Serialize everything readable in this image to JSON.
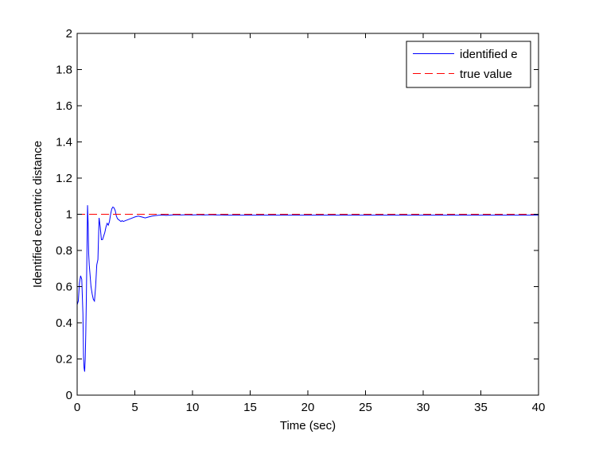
{
  "chart_data": {
    "type": "line",
    "title": "",
    "xlabel": "Time (sec)",
    "ylabel": "Identified eccentric distance",
    "xlim": [
      0,
      40
    ],
    "ylim": [
      0,
      2
    ],
    "xticks": [
      0,
      5,
      10,
      15,
      20,
      25,
      30,
      35,
      40
    ],
    "yticks": [
      0,
      0.2,
      0.4,
      0.6,
      0.8,
      1,
      1.2,
      1.4,
      1.6,
      1.8,
      2
    ],
    "xtick_labels": [
      "0",
      "5",
      "10",
      "15",
      "20",
      "25",
      "30",
      "35",
      "40"
    ],
    "ytick_labels": [
      "0",
      "0.2",
      "0.4",
      "0.6",
      "0.8",
      "1",
      "1.2",
      "1.4",
      "1.6",
      "1.8",
      "2"
    ],
    "grid": false,
    "legend_position": "top-right",
    "series": [
      {
        "name": "identified e",
        "color": "#0000ff",
        "style": "solid",
        "x": [
          0,
          0.1,
          0.2,
          0.3,
          0.4,
          0.5,
          0.55,
          0.6,
          0.65,
          0.7,
          0.75,
          0.8,
          0.85,
          0.9,
          0.95,
          1.0,
          1.05,
          1.1,
          1.2,
          1.3,
          1.4,
          1.5,
          1.6,
          1.7,
          1.8,
          1.9,
          2.0,
          2.1,
          2.2,
          2.3,
          2.4,
          2.5,
          2.6,
          2.7,
          2.8,
          2.9,
          3.0,
          3.1,
          3.2,
          3.3,
          3.4,
          3.5,
          3.6,
          3.7,
          3.8,
          3.9,
          4.0,
          4.2,
          4.4,
          4.6,
          4.8,
          5.0,
          5.3,
          5.6,
          5.9,
          6.2,
          6.5,
          6.8,
          7.1,
          7.4,
          7.7,
          8.0,
          8.5,
          9.0,
          9.5,
          10.0,
          10.5,
          11.0,
          11.5,
          12.0,
          12.5,
          13.0,
          13.5,
          14.0,
          16,
          20,
          25,
          30,
          35,
          40
        ],
        "y": [
          0.5,
          0.52,
          0.62,
          0.66,
          0.64,
          0.45,
          0.22,
          0.15,
          0.13,
          0.2,
          0.35,
          0.55,
          0.8,
          1.05,
          0.95,
          0.78,
          0.72,
          0.68,
          0.6,
          0.56,
          0.53,
          0.52,
          0.6,
          0.72,
          0.75,
          0.98,
          0.93,
          0.86,
          0.86,
          0.88,
          0.9,
          0.93,
          0.95,
          0.94,
          0.96,
          1.0,
          1.03,
          1.04,
          1.035,
          1.02,
          0.99,
          0.975,
          0.97,
          0.965,
          0.96,
          0.965,
          0.96,
          0.965,
          0.97,
          0.975,
          0.98,
          0.985,
          0.99,
          0.985,
          0.98,
          0.985,
          0.99,
          0.993,
          0.995,
          0.996,
          0.994,
          0.995,
          0.997,
          0.996,
          0.997,
          0.996,
          0.997,
          0.996,
          0.997,
          0.996,
          0.996,
          0.995,
          0.995,
          0.995,
          0.995,
          0.995,
          0.995,
          0.995,
          0.995,
          0.995
        ]
      },
      {
        "name": "true value",
        "color": "#ff0000",
        "style": "dashed",
        "x": [
          0,
          40
        ],
        "y": [
          1,
          1
        ]
      }
    ]
  }
}
